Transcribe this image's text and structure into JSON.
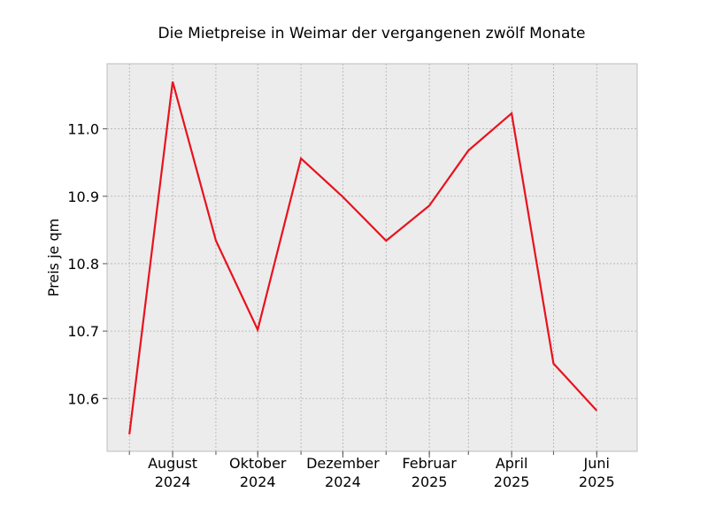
{
  "chart_data": {
    "type": "line",
    "title": "Die Mietpreise in Weimar der vergangenen zwölf Monate",
    "xlabel": "",
    "ylabel": "Preis je qm",
    "x": [
      "2024-07",
      "2024-08",
      "2024-09",
      "2024-10",
      "2024-11",
      "2024-12",
      "2025-01",
      "2025-02",
      "2025-03",
      "2025-04",
      "2025-05",
      "2025-06"
    ],
    "series": [
      {
        "values": [
          10.547,
          11.07,
          10.834,
          10.702,
          10.956,
          10.899,
          10.834,
          10.886,
          10.968,
          11.023,
          10.652,
          10.582
        ],
        "color": "#e8121e"
      }
    ],
    "x_tick_labels": [
      {
        "month": "2024-08",
        "line1": "August",
        "line2": "2024"
      },
      {
        "month": "2024-10",
        "line1": "Oktober",
        "line2": "2024"
      },
      {
        "month": "2024-12",
        "line1": "Dezember",
        "line2": "2024"
      },
      {
        "month": "2025-02",
        "line1": "Februar",
        "line2": "2025"
      },
      {
        "month": "2025-04",
        "line1": "April",
        "line2": "2025"
      },
      {
        "month": "2025-06",
        "line1": "Juni",
        "line2": "2025"
      }
    ],
    "y_ticks": [
      10.6,
      10.7,
      10.8,
      10.9,
      11.0
    ],
    "y_tick_labels": [
      "10.6",
      "10.7",
      "10.8",
      "10.9",
      "11.0"
    ],
    "ylim": [
      10.5216,
      11.0966
    ],
    "xlim": [
      "2024-06-15",
      "2025-06-30"
    ],
    "grid": true,
    "background": "#ececec"
  }
}
